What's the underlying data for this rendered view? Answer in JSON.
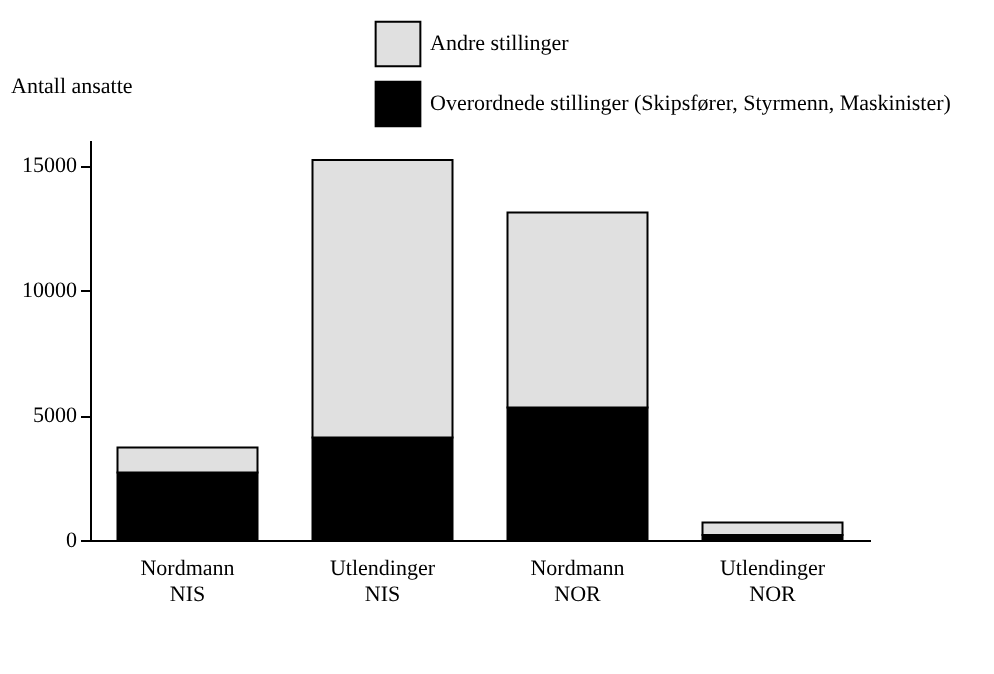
{
  "chart_data": {
    "type": "bar",
    "stacked": true,
    "ylabel": "Antall ansatte",
    "categories": [
      "Nordmann\nNIS",
      "Utlendinger\nNIS",
      "Nordmann\nNOR",
      "Utlendinger\nNOR"
    ],
    "series": [
      {
        "name": "Overordnede stillinger (Skipsfører, Styrmenn, Maskinister)",
        "color": "#000000",
        "values": [
          2700,
          4100,
          5300,
          200
        ]
      },
      {
        "name": "Andre stillinger",
        "color": "#e0e0e0",
        "values": [
          1000,
          11100,
          7800,
          500
        ]
      }
    ],
    "ylim": [
      0,
      16000
    ],
    "yticks": [
      0,
      5000,
      10000,
      15000
    ],
    "grid": false,
    "legend": "top"
  }
}
